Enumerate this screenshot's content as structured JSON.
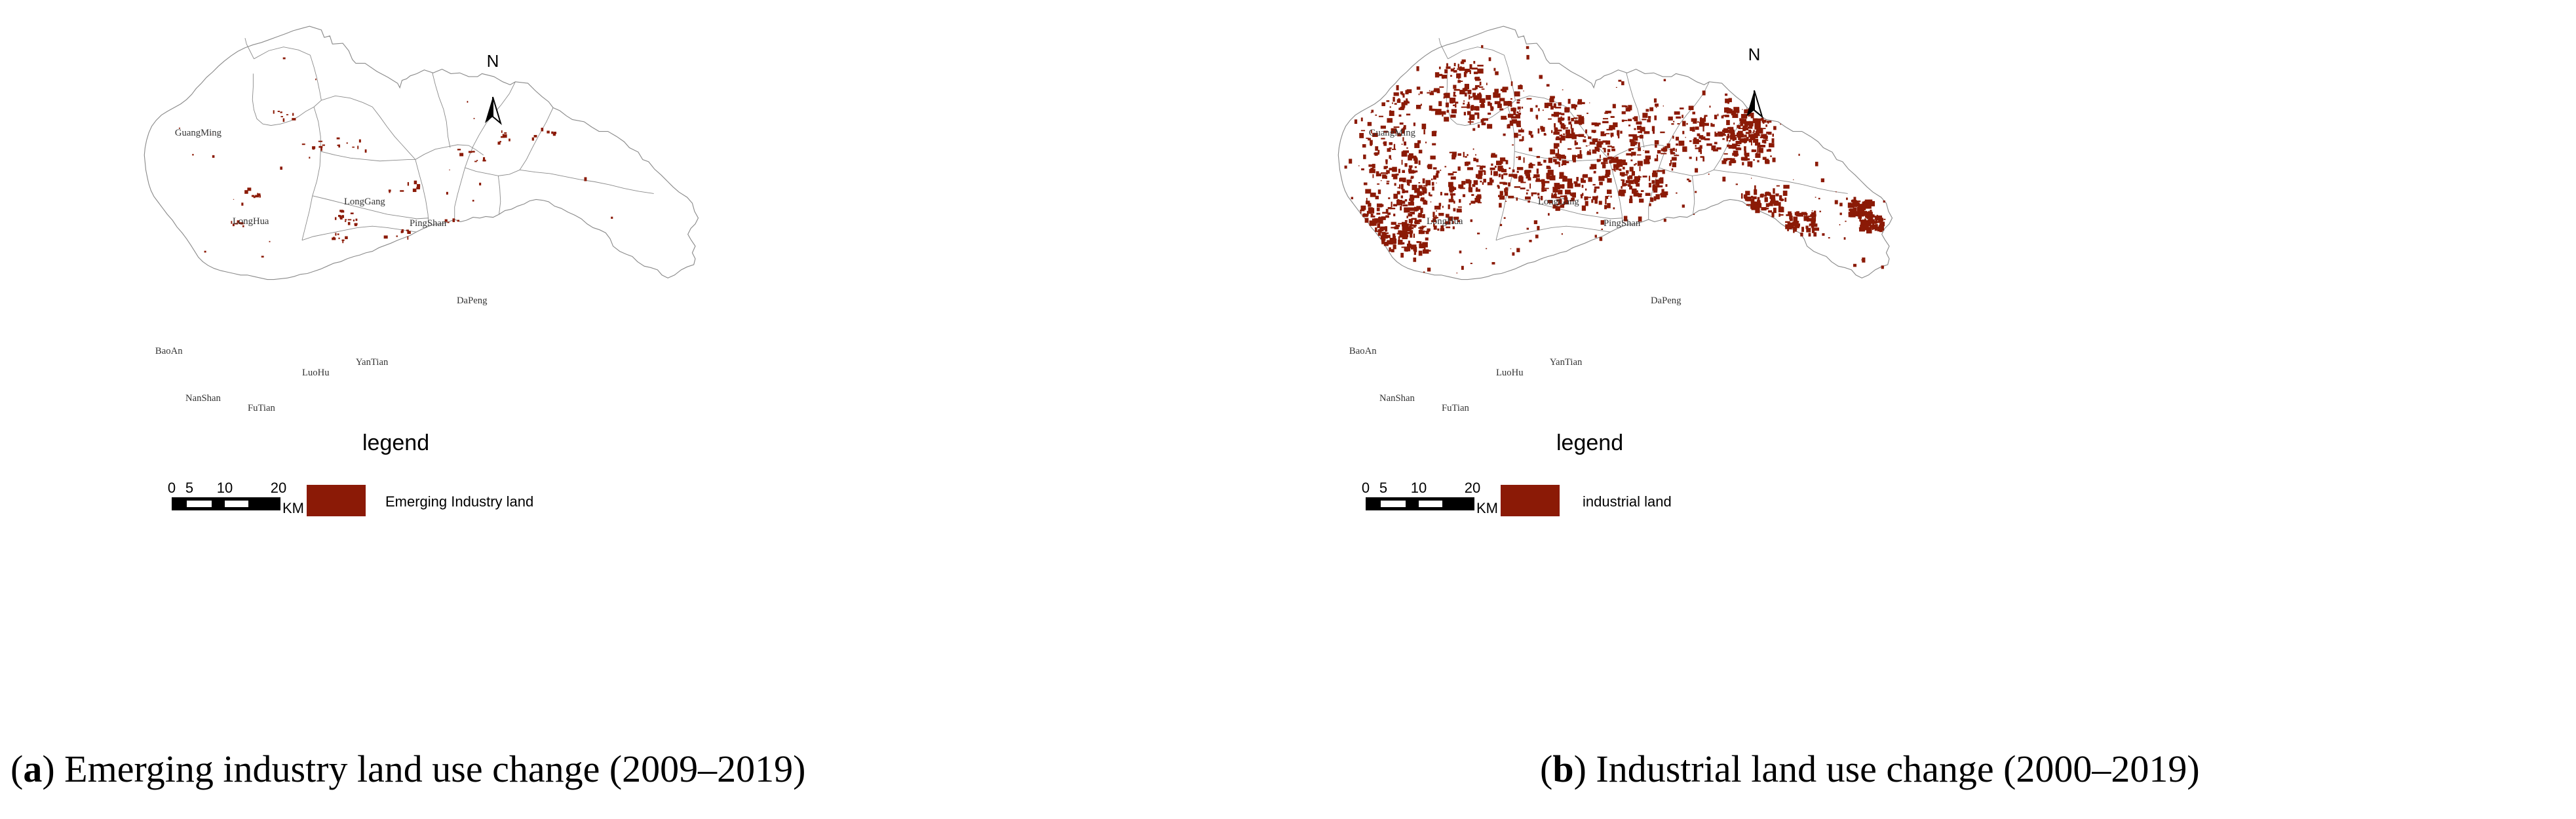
{
  "colors": {
    "land": "#8b1a06",
    "outline": "#8a8a8a",
    "background": "#ffffff"
  },
  "icons": [
    "north-arrow-icon",
    "scale-bar-icon",
    "legend-swatch-icon"
  ],
  "panels": [
    {
      "id": "a",
      "caption": {
        "letter": "a",
        "text": "Emerging industry land use change (2009–2019)"
      },
      "north_label": "N",
      "legend": {
        "title": "legend",
        "item": "Emerging Industry land"
      },
      "scale_bar": {
        "ticks": [
          "0",
          "5",
          "10",
          "20"
        ],
        "unit": "KM"
      },
      "districts": [
        "GuangMing",
        "LongHua",
        "LongGang",
        "PingShan",
        "DaPeng",
        "BaoAn",
        "NanShan",
        "FuTian",
        "LuoHu",
        "YanTian"
      ],
      "patch_density": "sparse"
    },
    {
      "id": "b",
      "caption": {
        "letter": "b",
        "text": "Industrial land use change (2000–2019)"
      },
      "north_label": "N",
      "legend": {
        "title": "legend",
        "item": "industrial land"
      },
      "scale_bar": {
        "ticks": [
          "0",
          "5",
          "10",
          "20"
        ],
        "unit": "KM"
      },
      "districts": [
        "GuangMing",
        "LongHua",
        "LongGang",
        "PingShan",
        "DaPeng",
        "BaoAn",
        "NanShan",
        "FuTian",
        "LuoHu",
        "YanTian"
      ],
      "patch_density": "dense"
    }
  ]
}
